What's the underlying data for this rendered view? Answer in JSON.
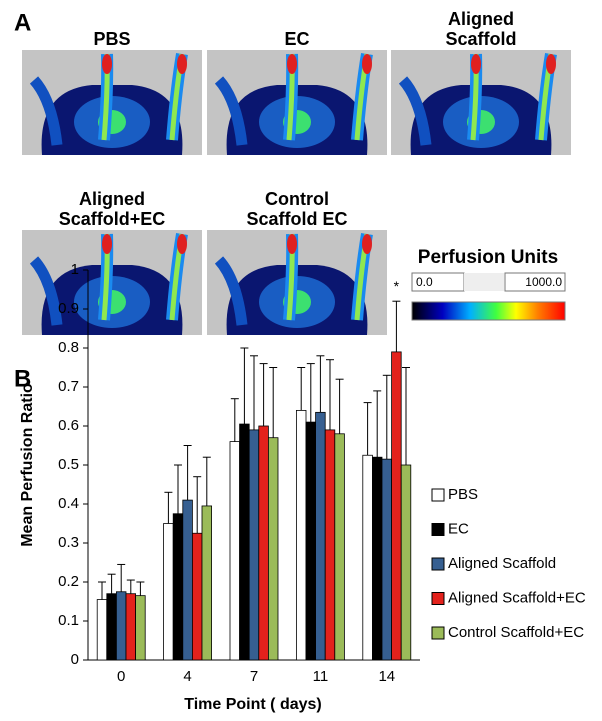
{
  "panel_a": {
    "label": "A",
    "images": [
      {
        "lines": [
          "PBS"
        ]
      },
      {
        "lines": [
          "EC"
        ]
      },
      {
        "lines": [
          "Aligned",
          "Scaffold"
        ]
      },
      {
        "lines": [
          "Aligned",
          "Scaffold+EC"
        ]
      },
      {
        "lines": [
          "Control",
          "Scaffold EC"
        ]
      }
    ],
    "colorbar": {
      "title": "Perfusion Units",
      "min_label": "0.0",
      "max_label": "1000.0"
    }
  },
  "chart_data": {
    "type": "bar",
    "panel_label": "B",
    "x_label": "Time Point ( days)",
    "y_label": "Mean Perfusion Ratio",
    "categories": [
      "0",
      "4",
      "7",
      "11",
      "14"
    ],
    "series": [
      {
        "name": "PBS",
        "color": "#ffffff",
        "values": [
          0.155,
          0.35,
          0.56,
          0.64,
          0.525
        ],
        "errors": [
          0.045,
          0.08,
          0.11,
          0.11,
          0.135
        ]
      },
      {
        "name": "EC",
        "color": "#000000",
        "values": [
          0.17,
          0.375,
          0.605,
          0.61,
          0.52
        ],
        "errors": [
          0.05,
          0.125,
          0.195,
          0.15,
          0.17
        ]
      },
      {
        "name": "Aligned Scaffold",
        "color": "#365f91",
        "values": [
          0.175,
          0.41,
          0.59,
          0.635,
          0.515
        ],
        "errors": [
          0.07,
          0.14,
          0.19,
          0.145,
          0.215
        ]
      },
      {
        "name": "Aligned Scaffold+EC",
        "color": "#e3221c",
        "values": [
          0.17,
          0.325,
          0.6,
          0.59,
          0.79
        ],
        "errors": [
          0.035,
          0.145,
          0.16,
          0.18,
          0.13
        ]
      },
      {
        "name": "Control Scaffold+EC",
        "color": "#9bbb59",
        "values": [
          0.165,
          0.395,
          0.57,
          0.58,
          0.5
        ],
        "errors": [
          0.035,
          0.125,
          0.18,
          0.14,
          0.25
        ]
      }
    ],
    "annotation": "*",
    "ylim": [
      0,
      1
    ],
    "yticks": [
      0,
      0.1,
      0.2,
      0.3,
      0.4,
      0.5,
      0.6,
      0.7,
      0.8,
      0.9,
      1
    ],
    "grid": false,
    "legend": "right"
  }
}
